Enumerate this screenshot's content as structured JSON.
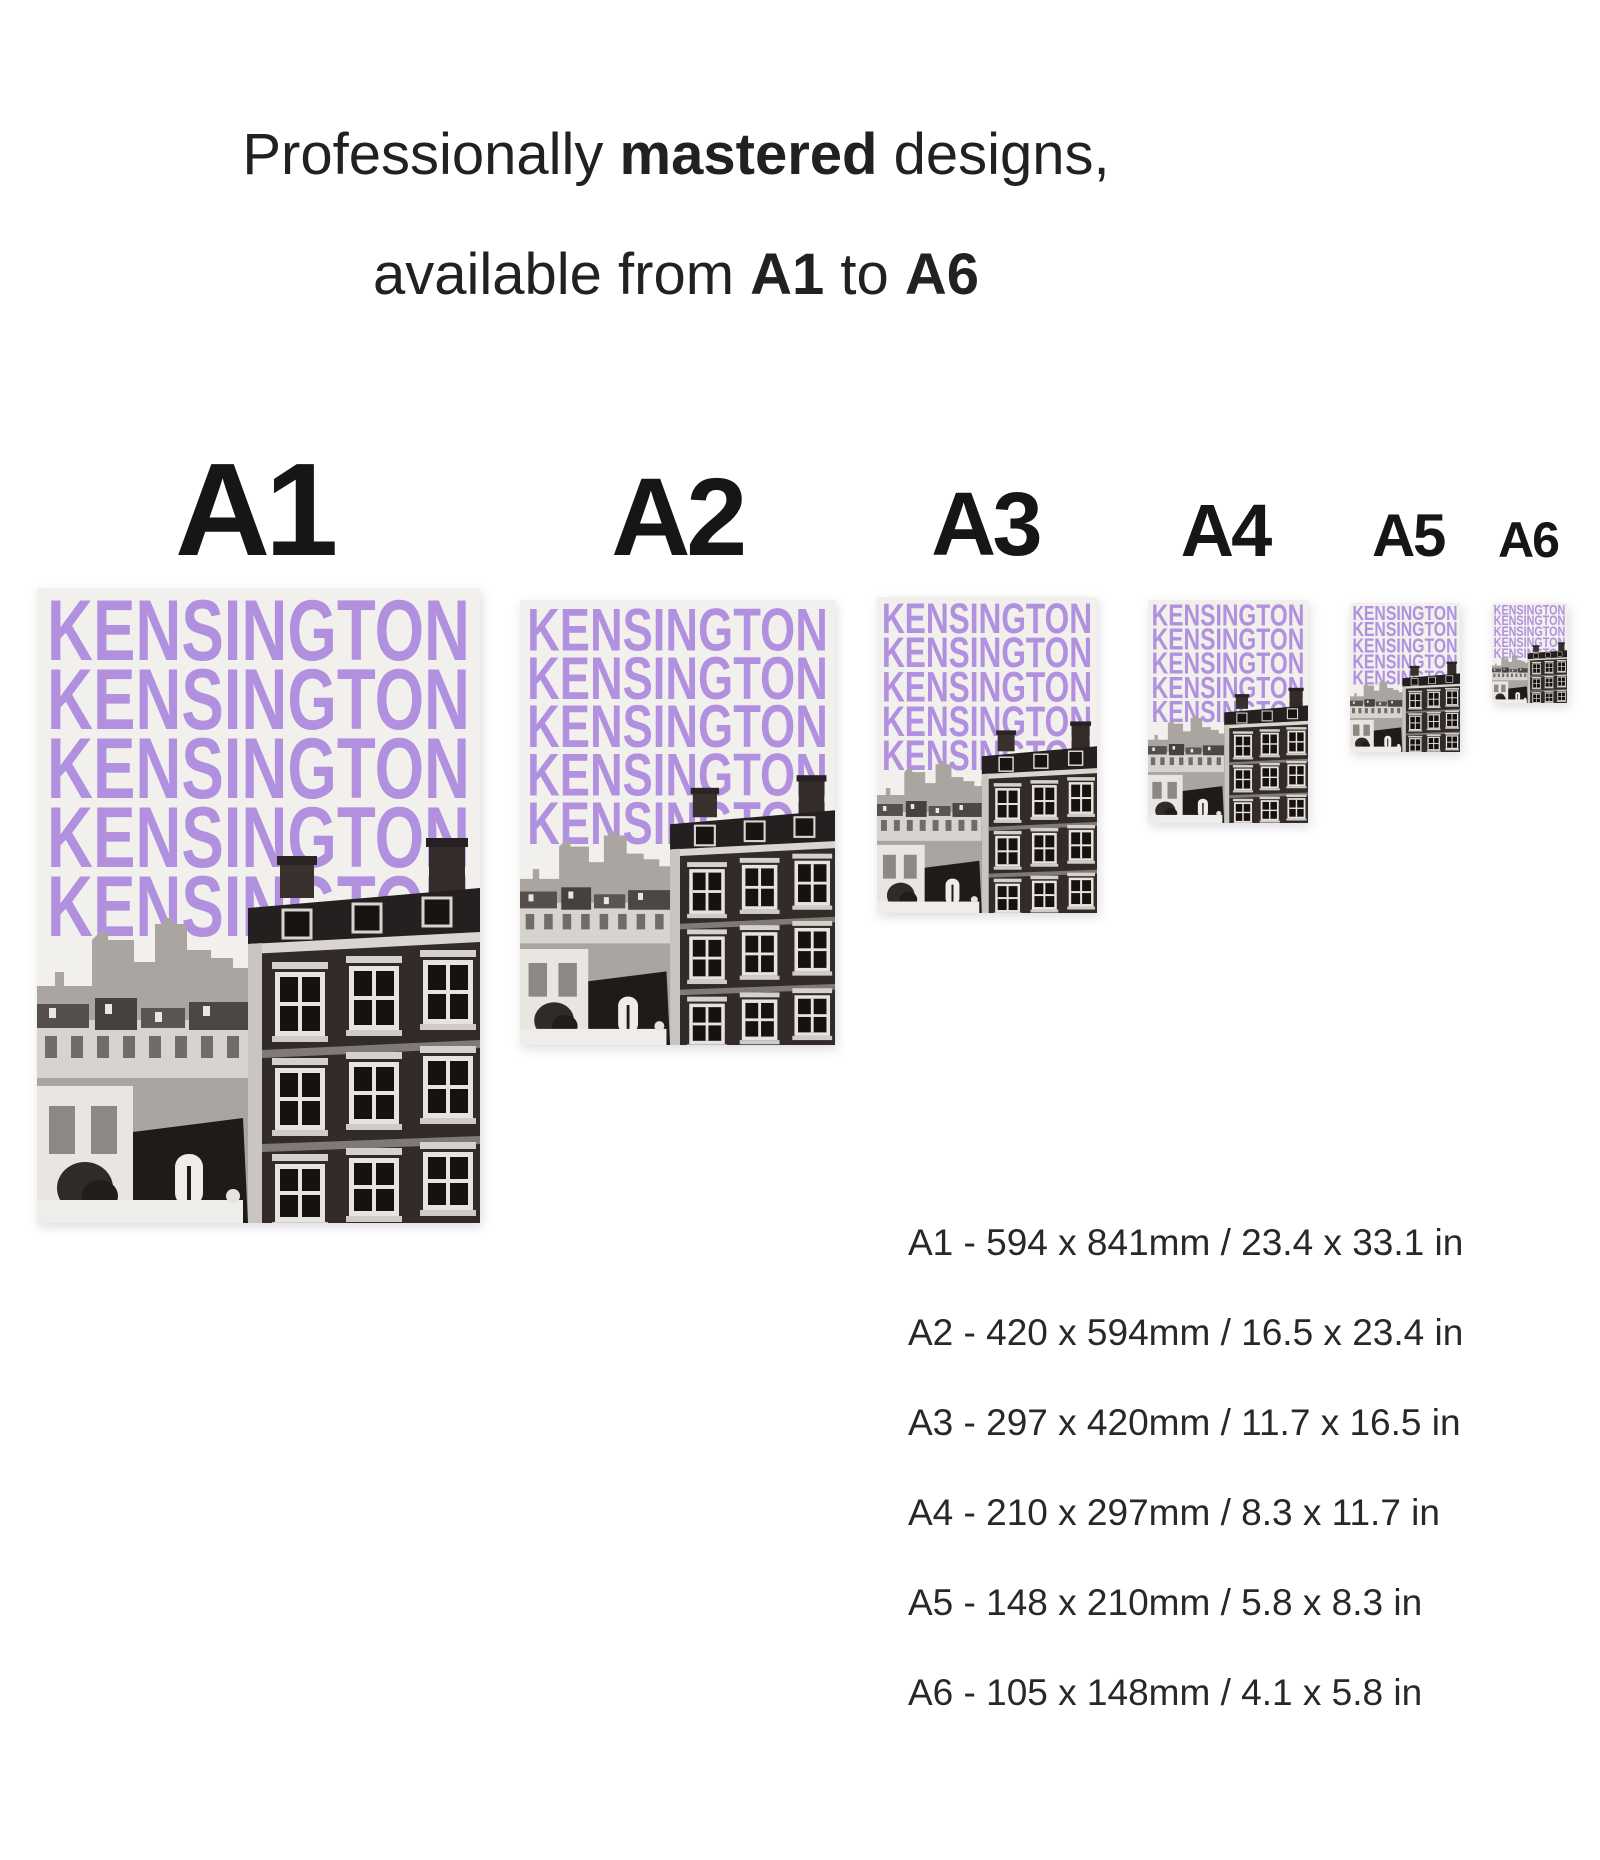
{
  "heading": {
    "line1_pre": "Professionally ",
    "line1_bold": "mastered",
    "line1_post": " designs,",
    "line2_pre": "available from ",
    "line2_bold_a": "A1",
    "line2_mid": " to ",
    "line2_bold_b": "A6"
  },
  "poster": {
    "word": "KENSINGTON",
    "repeat": 5,
    "word_color": "#b290e0",
    "bg_color": "#f2f0ec",
    "photo_style": "black-and-white photo of Kensington terraced houses and a Victorian mansion block"
  },
  "sizes": [
    {
      "label": "A1",
      "spec": "A1 - 594 x 841mm / 23.4 x 33.1 in"
    },
    {
      "label": "A2",
      "spec": "A2 - 420 x 594mm / 16.5 x 23.4 in"
    },
    {
      "label": "A3",
      "spec": "A3 - 297 x 420mm / 11.7 x 16.5 in"
    },
    {
      "label": "A4",
      "spec": "A4 - 210 x 297mm / 8.3 x 11.7 in"
    },
    {
      "label": "A5",
      "spec": "A5 - 148 x 210mm / 5.8 x 8.3 in"
    },
    {
      "label": "A6",
      "spec": "A6 - 105 x 148mm / 4.1 x 5.8 in"
    }
  ]
}
